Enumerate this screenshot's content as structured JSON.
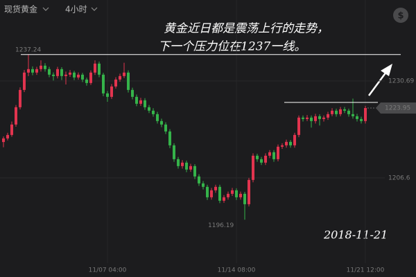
{
  "header": {
    "symbol": "现货黄金",
    "period": "4小时",
    "currency_button": "$"
  },
  "chart_data": {
    "type": "candlestick",
    "categories": [
      null,
      null,
      null,
      null,
      null,
      null,
      null,
      null,
      null,
      null,
      null,
      null,
      null,
      null,
      null,
      null,
      null,
      null,
      null,
      null,
      null,
      null,
      null,
      null,
      null,
      "11/07 04:00",
      null,
      null,
      null,
      null,
      null,
      null,
      null,
      null,
      null,
      null,
      null,
      null,
      null,
      null,
      null,
      null,
      null,
      null,
      null,
      null,
      null,
      null,
      null,
      null,
      null,
      null,
      null,
      null,
      null,
      null,
      "11/14 08:00",
      null,
      null,
      null,
      null,
      null,
      null,
      null,
      null,
      null,
      null,
      null,
      null,
      null,
      null,
      null,
      null,
      null,
      null,
      null,
      null,
      null,
      null,
      null,
      null,
      null,
      null,
      null,
      null,
      null,
      null,
      "11/21 12:00"
    ],
    "open": [
      1215.5,
      1216.4,
      1217.26,
      1219.85,
      1224.15,
      1228.45,
      1232.76,
      1233.62,
      1232.76,
      1233.62,
      1234.48,
      1233.62,
      1232.24,
      1231.9,
      1233.62,
      1231.9,
      1232.24,
      1232.76,
      1231.55,
      1232.24,
      1231.03,
      1230.17,
      1232.76,
      1234.99,
      1232.24,
      1227.59,
      1226.73,
      1229.31,
      1231.03,
      1231.9,
      1232.76,
      1228.45,
      1226.73,
      1225.01,
      1225.87,
      1224.15,
      1223.29,
      1222.43,
      1220.71,
      1219.85,
      1218.13,
      1214.68,
      1211.24,
      1209.52,
      1210.38,
      1208.66,
      1209.52,
      1206.94,
      1205.22,
      1204.36,
      1201.77,
      1203.5,
      1204.36,
      1200.91,
      1201.77,
      1202.63,
      1203.5,
      1201.77,
      1202.63,
      1200.05,
      1206.08,
      1212.1,
      1211.24,
      1210.38,
      1212.1,
      1212.96,
      1211.24,
      1214.34,
      1214.68,
      1215.54,
      1214.68,
      1217.26,
      1221.57,
      1221.22,
      1221.57,
      1220.71,
      1221.91,
      1221.22,
      1221.57,
      1222.43,
      1223.29,
      1222.43,
      1223.63,
      1223.29,
      1222.43,
      1221.91,
      1221.22,
      1220.71
    ],
    "high": [
      1216.9,
      1217.8,
      1220.6,
      1224.7,
      1229.1,
      1233.4,
      1237.24,
      1234.3,
      1234.2,
      1235.8,
      1235.1,
      1234.2,
      1232.8,
      1234.2,
      1234.1,
      1233.0,
      1233.4,
      1233.2,
      1232.8,
      1232.7,
      1231.5,
      1233.3,
      1235.8,
      1235.5,
      1232.7,
      1228.2,
      1229.9,
      1231.6,
      1232.5,
      1235.2,
      1233.3,
      1229.0,
      1227.3,
      1226.5,
      1226.4,
      1224.7,
      1223.9,
      1223.0,
      1221.3,
      1220.4,
      1218.7,
      1215.2,
      1211.8,
      1211.0,
      1210.9,
      1210.1,
      1210.0,
      1207.5,
      1205.8,
      1204.9,
      1204.1,
      1204.9,
      1204.9,
      1202.3,
      1203.2,
      1204.1,
      1204.0,
      1203.2,
      1203.1,
      1206.6,
      1212.7,
      1212.6,
      1211.8,
      1212.7,
      1213.5,
      1213.5,
      1214.9,
      1215.2,
      1216.1,
      1216.0,
      1217.8,
      1222.1,
      1222.1,
      1222.2,
      1222.1,
      1222.5,
      1222.4,
      1222.1,
      1223.0,
      1223.9,
      1223.8,
      1224.2,
      1224.2,
      1223.8,
      1226.3,
      1222.5,
      1221.8,
      1224.5
    ],
    "low": [
      1214.2,
      1215.9,
      1216.8,
      1219.3,
      1223.6,
      1227.9,
      1231.9,
      1232.1,
      1232.2,
      1233.0,
      1233.0,
      1231.6,
      1230.8,
      1231.3,
      1230.9,
      1229.8,
      1231.7,
      1230.9,
      1231.0,
      1230.4,
      1229.5,
      1229.7,
      1232.2,
      1231.6,
      1226.9,
      1225.5,
      1226.2,
      1228.8,
      1230.5,
      1231.4,
      1227.8,
      1226.1,
      1224.4,
      1224.5,
      1223.5,
      1222.7,
      1221.8,
      1220.1,
      1219.2,
      1217.5,
      1214.0,
      1210.6,
      1208.9,
      1208.9,
      1208.0,
      1208.1,
      1206.3,
      1204.6,
      1203.7,
      1201.1,
      1201.2,
      1202.9,
      1200.3,
      1200.4,
      1201.2,
      1202.1,
      1201.1,
      1201.2,
      1196.19,
      1199.5,
      1205.5,
      1210.6,
      1209.8,
      1209.8,
      1211.5,
      1210.6,
      1210.7,
      1213.8,
      1214.1,
      1214.1,
      1214.1,
      1216.7,
      1220.6,
      1220.7,
      1219.1,
      1220.1,
      1219.6,
      1220.6,
      1221.0,
      1221.9,
      1221.8,
      1221.9,
      1222.7,
      1221.8,
      1221.3,
      1220.6,
      1220.1,
      1220.1
    ],
    "close": [
      1216.4,
      1217.26,
      1219.85,
      1224.15,
      1228.45,
      1232.76,
      1233.62,
      1232.76,
      1233.62,
      1234.48,
      1233.62,
      1232.24,
      1231.9,
      1233.62,
      1231.9,
      1232.24,
      1232.76,
      1231.55,
      1232.24,
      1231.03,
      1230.17,
      1232.76,
      1234.99,
      1232.24,
      1227.59,
      1226.73,
      1229.31,
      1231.03,
      1231.9,
      1232.76,
      1228.45,
      1226.73,
      1225.01,
      1225.87,
      1224.15,
      1223.29,
      1222.43,
      1220.71,
      1219.85,
      1218.13,
      1214.68,
      1211.24,
      1209.52,
      1210.38,
      1208.66,
      1209.52,
      1206.94,
      1205.22,
      1204.36,
      1201.77,
      1203.5,
      1204.36,
      1200.91,
      1201.77,
      1202.63,
      1203.5,
      1201.77,
      1202.63,
      1200.05,
      1206.08,
      1212.1,
      1211.24,
      1210.38,
      1212.1,
      1212.96,
      1211.24,
      1214.34,
      1214.68,
      1215.54,
      1214.68,
      1217.26,
      1221.57,
      1221.22,
      1221.57,
      1220.71,
      1221.91,
      1221.22,
      1221.57,
      1222.43,
      1223.29,
      1222.43,
      1223.63,
      1223.29,
      1222.43,
      1221.91,
      1221.22,
      1220.71,
      1223.95
    ],
    "up_color": "#e2344f",
    "down_color": "#35b34a",
    "ylim": [
      1185.4,
      1250.8
    ],
    "yticks": [
      1230.69,
      1206.6
    ],
    "grid": true,
    "max_label": 1237.24,
    "min_label": 1196.19,
    "last_price": 1223.95,
    "drawn_lines": [
      1237.24,
      1225.35
    ],
    "annotations": [
      "黄金近日都是震荡上行的走势，",
      "下一个压力位在1237一线。",
      "2018-11-21"
    ]
  }
}
